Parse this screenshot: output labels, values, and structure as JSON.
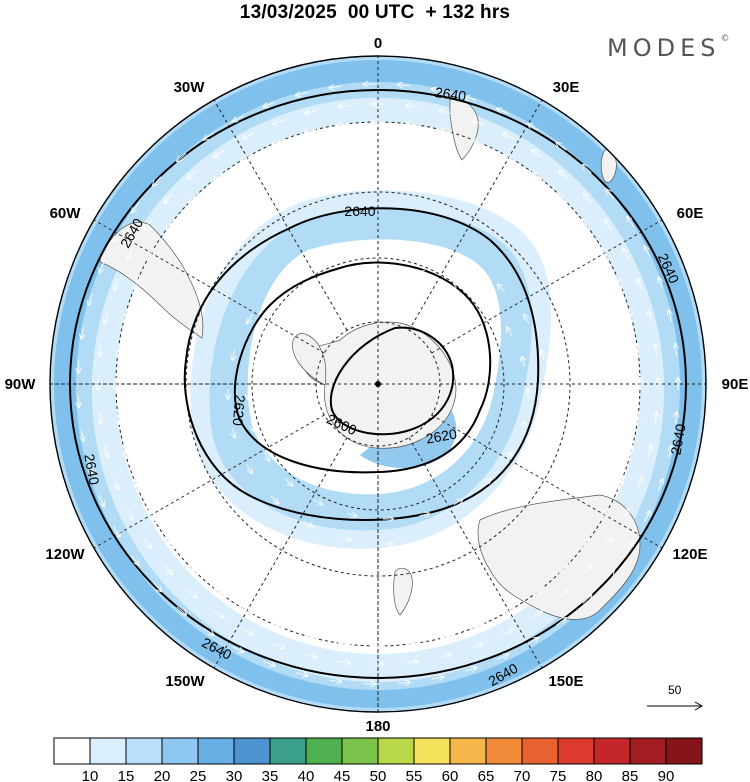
{
  "header": {
    "title": "13/03/2025  00 UTC  + 132 hrs",
    "brand": "MODES",
    "brand_mark": "©"
  },
  "map": {
    "projection": "south-polar-stereographic",
    "longitude_labels": [
      "0",
      "30E",
      "60E",
      "90E",
      "120E",
      "150E",
      "180",
      "150W",
      "120W",
      "90W",
      "60W",
      "30W"
    ],
    "contour_value_label": "2640",
    "contour_labels": [
      "2640",
      "2640",
      "2640",
      "2640",
      "2640",
      "2640",
      "2640",
      "2640",
      "2620",
      "2620",
      "2600"
    ],
    "field_colors": {
      "10-15": "#ffffff",
      "15-20": "#daeefb",
      "20-25": "#b2dcf6",
      "25-30": "#80c0ec",
      "30-35": "#64a6df"
    },
    "land_color": "#f2f2f2"
  },
  "reference_vector": {
    "label": "50"
  },
  "colorbar": {
    "ticks": [
      "10",
      "15",
      "20",
      "25",
      "30",
      "35",
      "40",
      "45",
      "50",
      "55",
      "60",
      "65",
      "70",
      "75",
      "80",
      "85",
      "90"
    ],
    "colors": [
      "#ffffff",
      "#dcefff",
      "#b9e0fa",
      "#8ec8f0",
      "#66aee4",
      "#4d93cf",
      "#3aa08c",
      "#4fb04f",
      "#7cc34b",
      "#b8d84a",
      "#f4e15c",
      "#f5b64a",
      "#f08a3a",
      "#e8622f",
      "#db3a2c",
      "#c4262a",
      "#a11d22",
      "#861519"
    ]
  }
}
